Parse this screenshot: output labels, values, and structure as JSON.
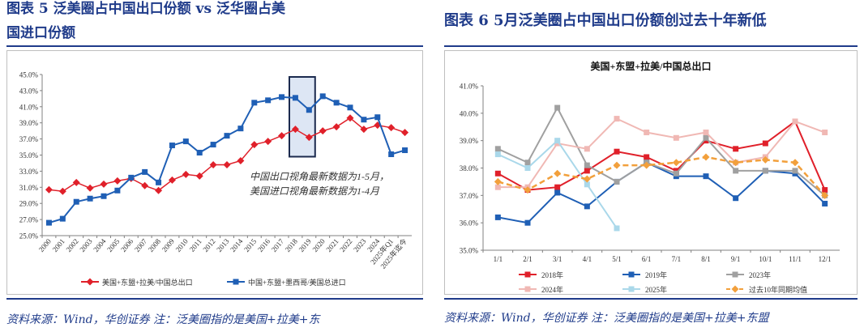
{
  "left": {
    "title_line1": "图表 5    泛美圈占中国出口份额 vs 泛华圈占美",
    "title_line2": "国进口份额",
    "source": "资料来源：Wind，华创证券   注：泛美圈指的是美国+拉美+东",
    "annotation_line1": "中国出口视角最新数据为1-5月，",
    "annotation_line2": "美国进口视角最新数据为1-4月"
  },
  "right": {
    "title": "图表 6   5月泛美圈占中国出口份额创过去十年新低",
    "source": "资料来源：Wind，华创证券   注：泛美圈指的是美国+拉美+东盟"
  },
  "chart_data": [
    {
      "type": "line",
      "title": "",
      "categories": [
        "2000",
        "2001",
        "2002",
        "2003",
        "2004",
        "2005",
        "2006",
        "2007",
        "2008",
        "2009",
        "2010",
        "2011",
        "2012",
        "2013",
        "2014",
        "2015",
        "2016",
        "2017",
        "2018",
        "2019",
        "2020",
        "2021",
        "2022",
        "2023",
        "2024",
        "2025年Q1",
        "2025年迄今"
      ],
      "yticks": [
        "25.0%",
        "27.0%",
        "29.0%",
        "31.0%",
        "33.0%",
        "35.0%",
        "37.0%",
        "39.0%",
        "41.0%",
        "43.0%",
        "45.0%"
      ],
      "ylim": [
        25,
        45
      ],
      "highlight": [
        "2018",
        "2019"
      ],
      "series": [
        {
          "name": "美国+东盟+拉美/中国总出口",
          "color": "#e0202a",
          "marker": "diamond",
          "values": [
            30.7,
            30.5,
            31.6,
            30.9,
            31.4,
            31.8,
            32.1,
            31.2,
            30.6,
            31.9,
            32.6,
            32.4,
            33.8,
            33.8,
            34.3,
            36.3,
            36.7,
            37.4,
            38.2,
            37.2,
            38.0,
            38.5,
            39.6,
            38.2,
            38.7,
            38.4,
            37.8
          ]
        },
        {
          "name": "中国+东盟+墨西哥/美国总进口",
          "color": "#1f5fb5",
          "marker": "square",
          "values": [
            26.6,
            27.1,
            29.2,
            29.6,
            29.9,
            30.6,
            32.2,
            32.9,
            31.6,
            36.2,
            36.7,
            35.3,
            36.3,
            37.4,
            38.3,
            41.5,
            41.8,
            42.2,
            42.1,
            40.6,
            42.3,
            41.5,
            40.9,
            39.4,
            39.7,
            35.1,
            35.6
          ]
        }
      ]
    },
    {
      "type": "line",
      "title": "美国+东盟+拉美/中国总出口",
      "categories": [
        "1/1",
        "2/1",
        "3/1",
        "4/1",
        "5/1",
        "6/1",
        "7/1",
        "8/1",
        "9/1",
        "10/1",
        "11/1",
        "12/1"
      ],
      "yticks": [
        "35.0%",
        "36.0%",
        "37.0%",
        "38.0%",
        "39.0%",
        "40.0%",
        "41.0%"
      ],
      "ylim": [
        35,
        41
      ],
      "series": [
        {
          "name": "2018年",
          "color": "#e0202a",
          "marker": "square",
          "values": [
            37.8,
            37.2,
            37.3,
            37.9,
            38.6,
            38.4,
            37.9,
            39.0,
            38.7,
            38.9,
            39.7,
            37.2
          ]
        },
        {
          "name": "2019年",
          "color": "#1f5fb5",
          "marker": "square",
          "values": [
            36.2,
            36.0,
            37.1,
            36.6,
            37.5,
            38.2,
            37.7,
            37.7,
            36.9,
            37.9,
            37.8,
            36.7
          ]
        },
        {
          "name": "2023年",
          "color": "#a0a0a0",
          "marker": "square",
          "values": [
            38.7,
            38.2,
            40.2,
            38.1,
            37.5,
            38.2,
            37.8,
            39.1,
            37.9,
            37.9,
            37.9,
            37.0
          ]
        },
        {
          "name": "2024年",
          "color": "#f0b8b4",
          "marker": "square",
          "values": [
            37.3,
            37.3,
            38.9,
            38.7,
            39.8,
            39.3,
            39.1,
            39.3,
            38.2,
            38.4,
            39.7,
            39.3
          ]
        },
        {
          "name": "2025年",
          "color": "#aad8ea",
          "marker": "square",
          "values": [
            38.5,
            38.0,
            39.0,
            37.4,
            35.8,
            null,
            null,
            null,
            null,
            null,
            null,
            null
          ]
        },
        {
          "name": "过去10年同期均值",
          "color": "#f2a03c",
          "marker": "diamond",
          "dashed": true,
          "values": [
            37.5,
            37.2,
            37.8,
            37.6,
            38.1,
            38.1,
            38.2,
            38.4,
            38.2,
            38.3,
            38.2,
            37.0
          ]
        }
      ]
    }
  ]
}
